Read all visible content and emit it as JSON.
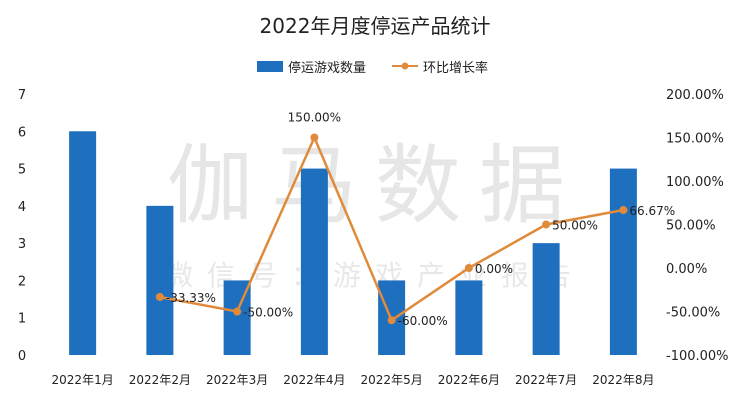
{
  "chart_data": {
    "type": "bar+line",
    "title": "2022年月度停运产品统计",
    "categories": [
      "2022年1月",
      "2022年2月",
      "2022年3月",
      "2022年4月",
      "2022年5月",
      "2022年6月",
      "2022年7月",
      "2022年8月"
    ],
    "series": [
      {
        "name": "停运游戏数量",
        "type": "bar",
        "axis": "left",
        "color": "#1f6fbf",
        "values": [
          6,
          4,
          2,
          5,
          2,
          2,
          3,
          5
        ]
      },
      {
        "name": "环比增长率",
        "type": "line",
        "axis": "right",
        "color": "#e08a3c",
        "values": [
          null,
          -33.33,
          -50.0,
          150.0,
          -60.0,
          0.0,
          50.0,
          66.67
        ],
        "data_labels": [
          "",
          "-33.33%",
          "-50.00%",
          "150.00%",
          "-60.00%",
          "0.00%",
          "50.00%",
          "66.67%"
        ]
      }
    ],
    "y_left": {
      "min": 0,
      "max": 7,
      "ticks": [
        "0",
        "1",
        "2",
        "3",
        "4",
        "5",
        "6",
        "7"
      ]
    },
    "y_right": {
      "min": -100,
      "max": 200,
      "ticks": [
        "-100.00%",
        "-50.00%",
        "0.00%",
        "50.00%",
        "100.00%",
        "150.00%",
        "200.00%"
      ]
    },
    "legend_position": "top-center",
    "grid": false
  },
  "watermark": {
    "line1": "伽马数据",
    "line2": "微信号：游戏产业报告"
  }
}
